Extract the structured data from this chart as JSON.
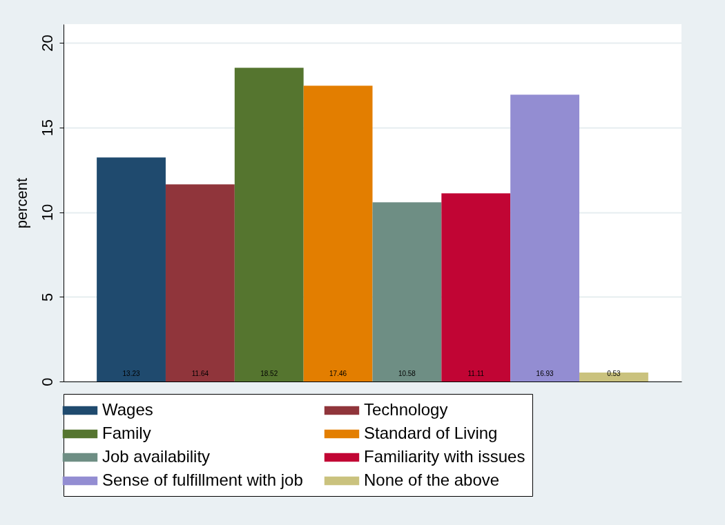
{
  "chart_data": {
    "type": "bar",
    "ylabel": "percent",
    "categories": [
      null
    ],
    "ylim": [
      0,
      21.1
    ],
    "yticks": [
      0,
      5,
      10,
      15,
      20
    ],
    "grid": "y",
    "legend": "bottom",
    "data_labels": true,
    "series": [
      {
        "name": "Wages",
        "color": "#1f4a6e",
        "values": [
          13.23
        ]
      },
      {
        "name": "Technology",
        "color": "#90353b",
        "values": [
          11.64
        ]
      },
      {
        "name": "Family",
        "color": "#55752f",
        "values": [
          18.52
        ]
      },
      {
        "name": "Standard of Living",
        "color": "#e37e00",
        "values": [
          17.46
        ]
      },
      {
        "name": "Job availability",
        "color": "#6e8e84",
        "values": [
          10.58
        ]
      },
      {
        "name": "Familiarity with issues",
        "color": "#c10534",
        "values": [
          11.11
        ]
      },
      {
        "name": "Sense of fulfillment with job",
        "color": "#938dd2",
        "values": [
          16.93
        ]
      },
      {
        "name": "None of the above",
        "color": "#cac27e",
        "values": [
          0.53
        ]
      }
    ]
  }
}
